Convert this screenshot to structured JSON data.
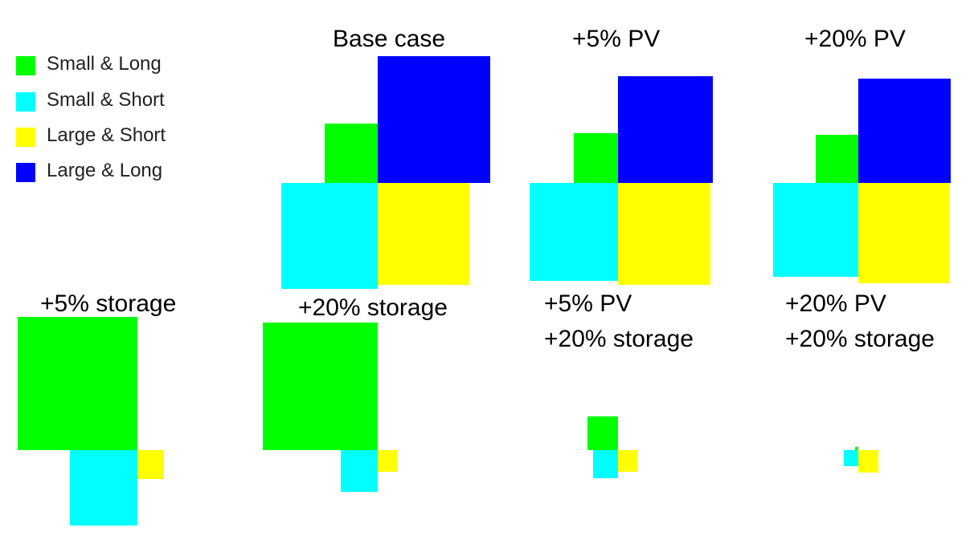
{
  "colors": {
    "small_long": "#00ff00",
    "small_short": "#00ffff",
    "large_short": "#ffff00",
    "large_long": "#0000ff"
  },
  "legend": [
    {
      "label": "Small & Long",
      "color": "#00ff00"
    },
    {
      "label": "Small & Short",
      "color": "#00ffff"
    },
    {
      "label": "Large & Short",
      "color": "#ffff00"
    },
    {
      "label": "Large & Long",
      "color": "#0000ff"
    }
  ],
  "panels": [
    {
      "title_lines": [
        "Base case"
      ]
    },
    {
      "title_lines": [
        "+5% PV"
      ]
    },
    {
      "title_lines": [
        "+20% PV"
      ]
    },
    {
      "title_lines": [
        "+5% storage"
      ]
    },
    {
      "title_lines": [
        "+20% storage"
      ]
    },
    {
      "title_lines": [
        "+5% PV",
        "+20% storage"
      ]
    },
    {
      "title_lines": [
        "+20% PV",
        "+20% storage"
      ]
    }
  ]
}
